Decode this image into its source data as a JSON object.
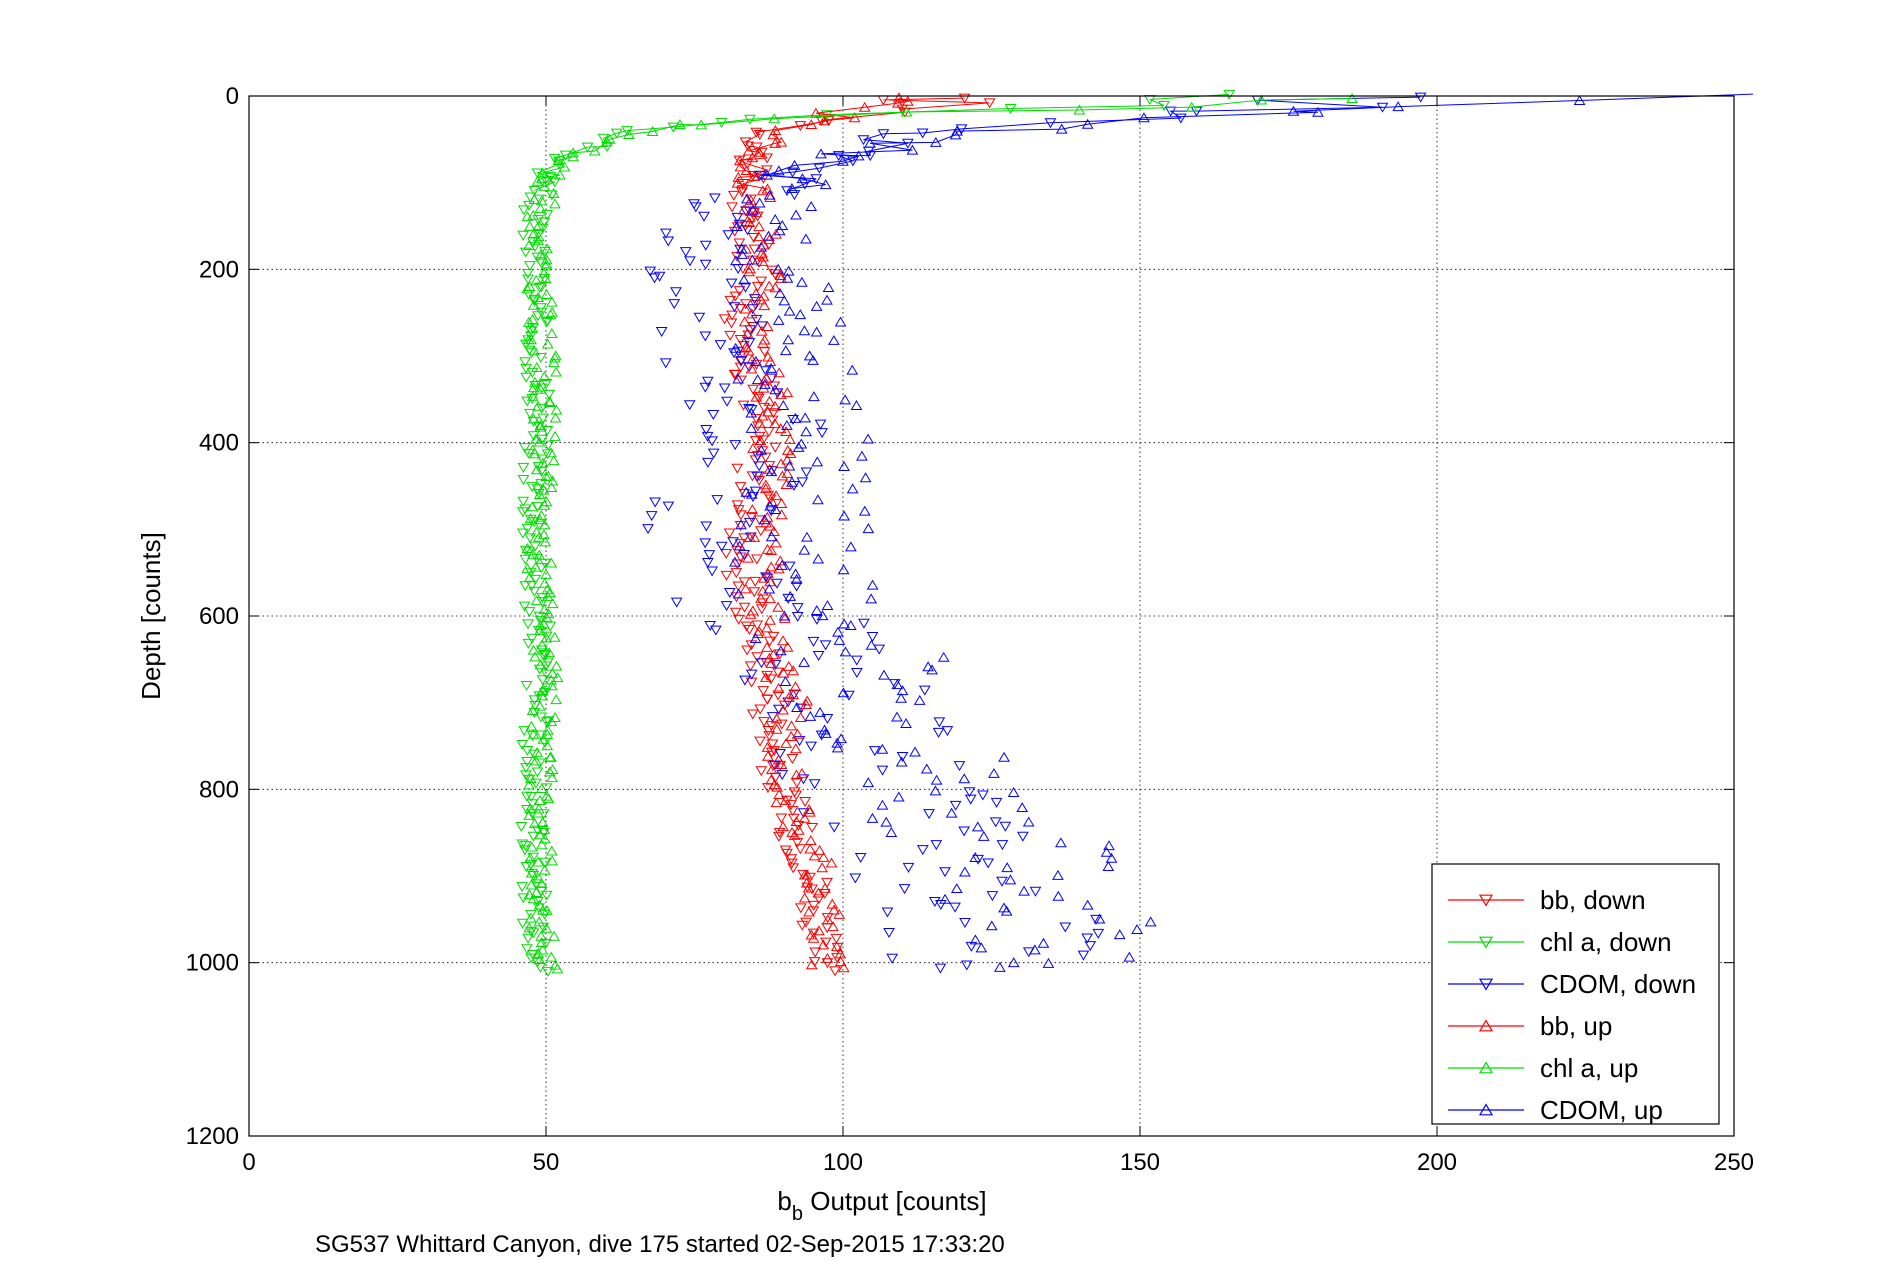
{
  "caption": "SG537 Whittard Canyon, dive 175 started 02-Sep-2015 17:33:20",
  "chart_data": {
    "type": "scatter",
    "xlabel_main": "b",
    "xlabel_sub": "b",
    "xlabel_rest": " Output [counts]",
    "ylabel": "Depth [counts]",
    "xlim": [
      0,
      250
    ],
    "ylim": [
      0,
      1200
    ],
    "y_reversed": true,
    "grid": true,
    "legend_position": "bottom-right",
    "x_ticks": [
      0,
      50,
      100,
      150,
      200,
      250
    ],
    "y_ticks": [
      0,
      200,
      400,
      600,
      800,
      1000,
      1200
    ],
    "x_tick_labels": [
      "0",
      "50",
      "100",
      "150",
      "200",
      "250"
    ],
    "y_tick_labels": [
      "0",
      "200",
      "400",
      "600",
      "800",
      "1000",
      "1200"
    ],
    "series": [
      {
        "name": "bb, down",
        "color": "#ff0000",
        "marker": "triangle-down",
        "profile": [
          [
            0,
            113
          ],
          [
            10,
            117
          ],
          [
            25,
            104
          ],
          [
            40,
            88
          ],
          [
            55,
            86
          ],
          [
            70,
            86
          ],
          [
            85,
            84
          ],
          [
            100,
            84
          ],
          [
            130,
            83
          ],
          [
            160,
            84
          ],
          [
            200,
            86
          ],
          [
            250,
            83
          ],
          [
            300,
            84
          ],
          [
            350,
            86
          ],
          [
            400,
            86
          ],
          [
            450,
            85
          ],
          [
            500,
            84
          ],
          [
            550,
            83
          ],
          [
            600,
            85
          ],
          [
            650,
            87
          ],
          [
            700,
            88
          ],
          [
            750,
            88
          ],
          [
            800,
            90
          ],
          [
            850,
            92
          ],
          [
            900,
            95
          ],
          [
            950,
            96
          ],
          [
            1005,
            96
          ]
        ]
      },
      {
        "name": "chl a, down",
        "color": "#00dd00",
        "marker": "triangle-down",
        "profile": [
          [
            0,
            160
          ],
          [
            10,
            150
          ],
          [
            20,
            100
          ],
          [
            30,
            80
          ],
          [
            40,
            66
          ],
          [
            50,
            60
          ],
          [
            60,
            57
          ],
          [
            70,
            53
          ],
          [
            80,
            51
          ],
          [
            90,
            50
          ],
          [
            110,
            49
          ],
          [
            140,
            48
          ],
          [
            180,
            48
          ],
          [
            250,
            48
          ],
          [
            350,
            49
          ],
          [
            450,
            48
          ],
          [
            550,
            48
          ],
          [
            650,
            49
          ],
          [
            750,
            48
          ],
          [
            850,
            48
          ],
          [
            950,
            48
          ],
          [
            1005,
            49
          ]
        ]
      },
      {
        "name": "CDOM, down",
        "color": "#0000ff",
        "marker": "triangle-down",
        "profile": [
          [
            0,
            188
          ],
          [
            10,
            175
          ],
          [
            25,
            140
          ],
          [
            40,
            118
          ],
          [
            55,
            105
          ],
          [
            70,
            98
          ],
          [
            85,
            92
          ],
          [
            100,
            88
          ],
          [
            120,
            82
          ],
          [
            150,
            78
          ],
          [
            200,
            76
          ],
          [
            250,
            77
          ],
          [
            300,
            78
          ],
          [
            350,
            82
          ],
          [
            400,
            88
          ],
          [
            450,
            82
          ],
          [
            500,
            78
          ],
          [
            550,
            80
          ],
          [
            600,
            88
          ],
          [
            650,
            97
          ],
          [
            700,
            100
          ],
          [
            750,
            103
          ],
          [
            800,
            108
          ],
          [
            850,
            112
          ],
          [
            900,
            120
          ],
          [
            950,
            125
          ],
          [
            1005,
            128
          ]
        ]
      },
      {
        "name": "bb, up",
        "color": "#ff0000",
        "marker": "triangle-up",
        "profile": [
          [
            0,
            115
          ],
          [
            10,
            112
          ],
          [
            25,
            100
          ],
          [
            40,
            90
          ],
          [
            55,
            87
          ],
          [
            70,
            86
          ],
          [
            85,
            85
          ],
          [
            100,
            85
          ],
          [
            130,
            85
          ],
          [
            160,
            86
          ],
          [
            200,
            87
          ],
          [
            250,
            86
          ],
          [
            300,
            87
          ],
          [
            350,
            88
          ],
          [
            400,
            88
          ],
          [
            450,
            88
          ],
          [
            500,
            87
          ],
          [
            550,
            86
          ],
          [
            600,
            87
          ],
          [
            650,
            89
          ],
          [
            700,
            91
          ],
          [
            750,
            90
          ],
          [
            800,
            91
          ],
          [
            850,
            93
          ],
          [
            900,
            96
          ],
          [
            950,
            97
          ],
          [
            1005,
            97
          ]
        ]
      },
      {
        "name": "chl a, up",
        "color": "#00dd00",
        "marker": "triangle-up",
        "profile": [
          [
            0,
            182
          ],
          [
            10,
            165
          ],
          [
            20,
            110
          ],
          [
            30,
            78
          ],
          [
            40,
            68
          ],
          [
            50,
            62
          ],
          [
            60,
            58
          ],
          [
            70,
            54
          ],
          [
            80,
            52
          ],
          [
            90,
            51
          ],
          [
            110,
            50
          ],
          [
            140,
            49
          ],
          [
            180,
            49
          ],
          [
            250,
            49
          ],
          [
            350,
            50
          ],
          [
            450,
            49
          ],
          [
            550,
            49
          ],
          [
            650,
            50
          ],
          [
            750,
            49
          ],
          [
            850,
            49
          ],
          [
            950,
            49
          ],
          [
            1005,
            50
          ]
        ]
      },
      {
        "name": "CDOM, up",
        "color": "#0000ff",
        "marker": "triangle-up",
        "profile": [
          [
            0,
            244
          ],
          [
            10,
            200
          ],
          [
            25,
            160
          ],
          [
            40,
            125
          ],
          [
            55,
            110
          ],
          [
            70,
            100
          ],
          [
            85,
            94
          ],
          [
            100,
            92
          ],
          [
            120,
            90
          ],
          [
            150,
            90
          ],
          [
            200,
            90
          ],
          [
            250,
            90
          ],
          [
            300,
            91
          ],
          [
            350,
            93
          ],
          [
            400,
            95
          ],
          [
            450,
            94
          ],
          [
            500,
            92
          ],
          [
            550,
            93
          ],
          [
            600,
            97
          ],
          [
            650,
            103
          ],
          [
            700,
            107
          ],
          [
            750,
            112
          ],
          [
            800,
            118
          ],
          [
            850,
            125
          ],
          [
            900,
            133
          ],
          [
            950,
            138
          ],
          [
            1005,
            145
          ]
        ]
      }
    ]
  }
}
